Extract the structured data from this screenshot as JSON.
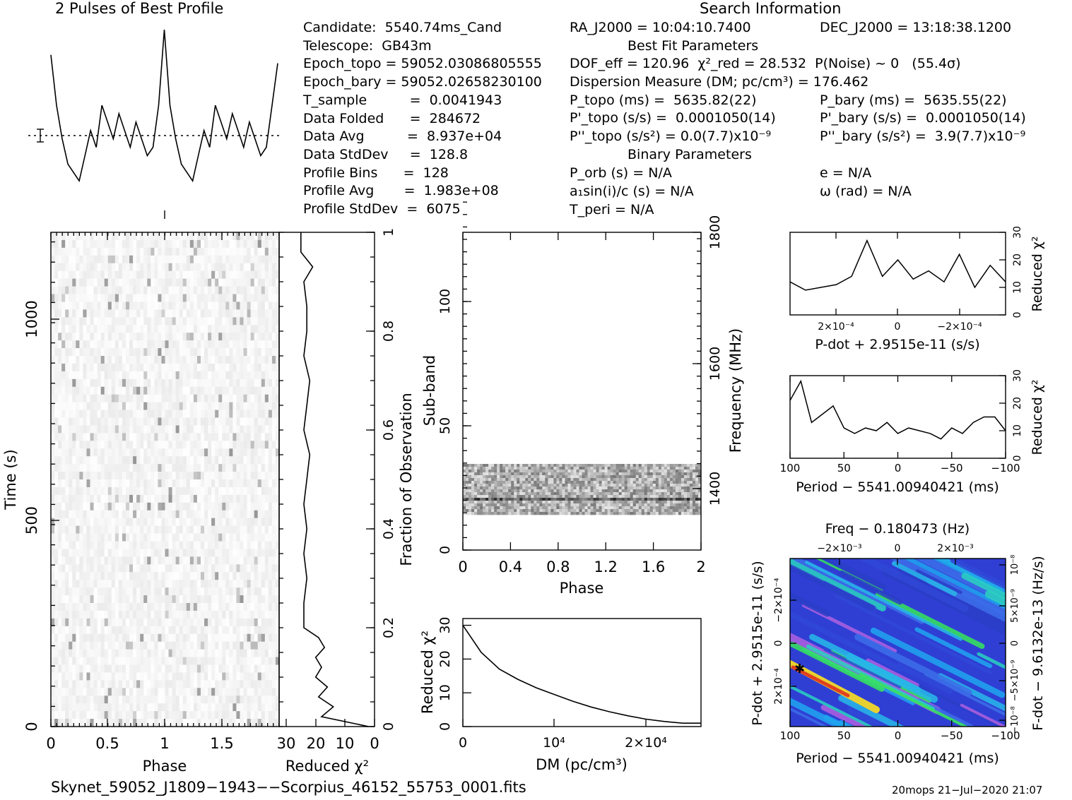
{
  "titles": {
    "profile": "2 Pulses of Best Profile",
    "search": "Search Information",
    "best_fit": "Best Fit Parameters",
    "binary": "Binary Parameters",
    "footer_file": "Skynet_59052_J1809−1943−−Scorpius_46152_55753_0001.fits",
    "footer_date": "20mops 21−Jul−2020 21:07"
  },
  "info_left": [
    "Candidate:  5540.74ms_Cand",
    "Telescope:  GB43m",
    "Epoch_topo = 59052.03086805555",
    "Epoch_bary = 59052.02658230100",
    "T_sample          =  0.0041943",
    "Data Folded      =  284672",
    "Data Avg          =  8.937e+04",
    "Data StdDev     =  128.8",
    "Profile Bins      =  128",
    "Profile Avg       =  1.983e+08",
    "Profile StdDev  =  6075"
  ],
  "info_mid": [
    "RA_J2000 = 10:04:10.7400",
    "DOF_eff = 120.96  χ²_red = 28.532  P(Noise) ~ 0   (55.4σ)",
    "Dispersion Measure (DM; pc/cm³) = 176.462",
    "P_topo (ms) =  5635.82(22)",
    "P'_topo (s/s) =  0.0001050(14)",
    "P''_topo (s/s²) = 0.0(7.7)x10⁻⁹",
    "P_orb (s) = N/A",
    "a₁sin(i)/c (s) = N/A",
    "T_peri = N/A"
  ],
  "info_right": [
    "DEC_J2000 = 13:18:38.1200",
    "P_bary (ms) =  5635.55(22)",
    "P'_bary (s/s) =  0.0001050(14)",
    "P''_bary (s/s²) =  3.9(7.7)x10⁻⁹",
    "e = N/A",
    "ω (rad) = N/A"
  ],
  "axes": {
    "phase": "Phase",
    "time": "Time (s)",
    "reduced_chi2": "Reduced χ²",
    "fraction": "Fraction of Observation",
    "subband": "Sub-band",
    "frequency": "Frequency (MHz)",
    "dm": "DM (pc/cm³)",
    "pdot": "P-dot + 2.9515e-11 (s/s)",
    "period": "Period − 5541.00940421 (ms)",
    "freq_top": "Freq − 0.180473 (Hz)",
    "pdot_left": "P-dot + 2.9515e-11 (s/s)",
    "fdot_right": "F-dot − 9.6132e-13 (Hz/s)"
  },
  "ticks": {
    "phase_time": [
      "0",
      "0.5",
      "1",
      "1.5"
    ],
    "time": [
      "0",
      "500",
      "1000"
    ],
    "chi_time": [
      "30",
      "20",
      "10",
      "0"
    ],
    "fraction": [
      "0",
      "0.2",
      "0.4",
      "0.6",
      "0.8",
      "1"
    ],
    "phase_sub": [
      "0",
      "0.4",
      "0.8",
      "1.2",
      "1.6",
      "2"
    ],
    "subband": [
      "0",
      "50",
      "100"
    ],
    "frequency": [
      "1400",
      "1600",
      "1800"
    ],
    "dm_chi": [
      "0",
      "10",
      "20",
      "30"
    ],
    "dm": [
      "0",
      "10⁴",
      "2×10⁴"
    ],
    "pdot_x": [
      "2×10⁻⁴",
      "0",
      "−2×10⁻⁴"
    ],
    "chi_small": [
      "0",
      "10",
      "20",
      "30"
    ],
    "period_x": [
      "100",
      "50",
      "0",
      "−50",
      "−100"
    ],
    "freq_x": [
      "−2×10⁻³",
      "0",
      "2×10⁻³"
    ],
    "pdot_y": [
      "−2×10⁻⁴",
      "0",
      "2×10⁻⁴"
    ],
    "fdot_y": [
      "10⁻⁸",
      "5×10⁻⁹",
      "0",
      "−5×10⁻⁹",
      "−10⁻⁸"
    ]
  },
  "chart_data": [
    {
      "type": "line",
      "title": "2 Pulses of Best Profile",
      "x": [
        0.0,
        0.05,
        0.1,
        0.15,
        0.2,
        0.25,
        0.3,
        0.35,
        0.4,
        0.45,
        0.5,
        0.55,
        0.6,
        0.65,
        0.7,
        0.75,
        0.8,
        0.85,
        0.9,
        0.95,
        1.0,
        1.05,
        1.1,
        1.15,
        1.2,
        1.25,
        1.3,
        1.35,
        1.4,
        1.45,
        1.5,
        1.55,
        1.6,
        1.65,
        1.7,
        1.75,
        1.8,
        1.85,
        1.9,
        1.95,
        2.0
      ],
      "values": [
        0.85,
        0.55,
        0.35,
        0.2,
        0.15,
        0.1,
        0.25,
        0.4,
        0.3,
        0.55,
        0.45,
        0.35,
        0.5,
        0.4,
        0.3,
        0.45,
        0.35,
        0.25,
        0.3,
        0.55,
        1.0,
        0.55,
        0.35,
        0.2,
        0.15,
        0.1,
        0.25,
        0.4,
        0.3,
        0.55,
        0.45,
        0.35,
        0.5,
        0.4,
        0.3,
        0.45,
        0.35,
        0.25,
        0.3,
        0.55,
        0.8
      ]
    },
    {
      "type": "line",
      "xlabel": "Reduced χ²",
      "ylabel": "Fraction of Observation",
      "fraction": [
        0.0,
        0.02,
        0.04,
        0.06,
        0.08,
        0.1,
        0.12,
        0.14,
        0.16,
        0.18,
        0.2,
        0.25,
        0.3,
        0.35,
        0.4,
        0.45,
        0.5,
        0.55,
        0.6,
        0.65,
        0.7,
        0.75,
        0.8,
        0.85,
        0.9,
        0.93,
        0.96,
        1.0
      ],
      "chi2": [
        2,
        18,
        14,
        19,
        16,
        20,
        18,
        20,
        17,
        19,
        24,
        24,
        23,
        24,
        23,
        24,
        23,
        22,
        24,
        23,
        22,
        24,
        23,
        23,
        24,
        21,
        25,
        25
      ]
    },
    {
      "type": "line",
      "xlabel": "DM (pc/cm³)",
      "ylabel": "Reduced χ²",
      "x": [
        0,
        2000,
        4000,
        6000,
        8000,
        10000,
        12000,
        14000,
        16000,
        18000,
        20000,
        22000,
        24000,
        26000
      ],
      "values": [
        30,
        22,
        17,
        14,
        11.5,
        9.5,
        7.5,
        5.8,
        4.4,
        3.2,
        2.2,
        1.5,
        1.0,
        1.0
      ],
      "xlim": [
        0,
        26000
      ],
      "ylim": [
        0,
        32
      ]
    },
    {
      "type": "line",
      "xlabel": "P-dot + 2.9515e-11 (s/s)",
      "ylabel": "Reduced χ²",
      "x": [
        0.00035,
        0.0003,
        0.00025,
        0.0002,
        0.00015,
        0.0001,
        5e-05,
        0,
        -5e-05,
        -0.0001,
        -0.00015,
        -0.0002,
        -0.00025,
        -0.0003,
        -0.00035
      ],
      "values": [
        12,
        9,
        10,
        11,
        14,
        27,
        14,
        20,
        13,
        16,
        12,
        22,
        10,
        18,
        12
      ],
      "ylim": [
        0,
        30
      ]
    },
    {
      "type": "line",
      "xlabel": "Period − 5541.00940421 (ms)",
      "ylabel": "Reduced χ²",
      "x": [
        100,
        90,
        80,
        70,
        60,
        50,
        40,
        30,
        20,
        10,
        0,
        -10,
        -20,
        -30,
        -40,
        -50,
        -60,
        -70,
        -80,
        -90,
        -100
      ],
      "values": [
        21,
        28,
        13,
        16,
        19,
        11,
        9,
        11,
        10,
        13,
        9,
        11,
        10,
        9,
        7,
        11,
        9,
        13,
        15,
        15,
        10
      ],
      "xlim": [
        100,
        -100
      ],
      "ylim": [
        0,
        30
      ]
    }
  ]
}
